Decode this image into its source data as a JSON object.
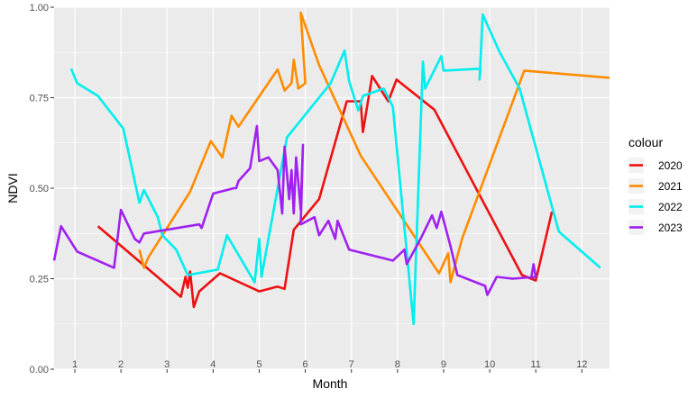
{
  "chart_data": {
    "type": "line",
    "title": "",
    "xlabel": "Month",
    "ylabel": "NDVI",
    "xlim": [
      0.55,
      12.6
    ],
    "ylim": [
      0,
      1
    ],
    "x_ticks": [
      1,
      2,
      3,
      4,
      5,
      6,
      7,
      8,
      9,
      10,
      11,
      12
    ],
    "x_tick_labels": [
      "1",
      "2",
      "3",
      "4",
      "5",
      "6",
      "7",
      "8",
      "9",
      "10",
      "11",
      "12"
    ],
    "y_ticks": [
      0,
      0.25,
      0.5,
      0.75,
      1
    ],
    "y_tick_labels": [
      "0.00",
      "0.25",
      "0.50",
      "0.75",
      "1.00"
    ],
    "grid": true,
    "legend_title": "colour",
    "legend_position": "right",
    "series": [
      {
        "name": "2020",
        "color": "#ee1111",
        "points": [
          [
            1.5,
            0.395
          ],
          [
            3.3,
            0.2
          ],
          [
            3.4,
            0.255
          ],
          [
            3.45,
            0.225
          ],
          [
            3.5,
            0.27
          ],
          [
            3.58,
            0.172
          ],
          [
            3.7,
            0.215
          ],
          [
            4.15,
            0.265
          ],
          [
            5.0,
            0.215
          ],
          [
            5.4,
            0.228
          ],
          [
            5.55,
            0.222
          ],
          [
            5.75,
            0.385
          ],
          [
            6.3,
            0.47
          ],
          [
            6.9,
            0.74
          ],
          [
            7.2,
            0.74
          ],
          [
            7.25,
            0.655
          ],
          [
            7.45,
            0.81
          ],
          [
            7.8,
            0.74
          ],
          [
            7.98,
            0.8
          ],
          [
            8.8,
            0.717
          ],
          [
            10.7,
            0.26
          ],
          [
            11.0,
            0.245
          ],
          [
            11.35,
            0.435
          ]
        ]
      },
      {
        "name": "2021",
        "color": "#ff8c00",
        "points": [
          [
            2.4,
            0.33
          ],
          [
            2.5,
            0.28
          ],
          [
            2.6,
            0.31
          ],
          [
            3.5,
            0.49
          ],
          [
            3.95,
            0.63
          ],
          [
            4.2,
            0.585
          ],
          [
            4.4,
            0.7
          ],
          [
            4.55,
            0.67
          ],
          [
            5.4,
            0.828
          ],
          [
            5.55,
            0.77
          ],
          [
            5.7,
            0.79
          ],
          [
            5.75,
            0.855
          ],
          [
            5.85,
            0.775
          ],
          [
            6.0,
            0.79
          ],
          [
            5.9,
            0.985
          ],
          [
            6.3,
            0.84
          ],
          [
            7.2,
            0.59
          ],
          [
            8.9,
            0.265
          ],
          [
            9.1,
            0.32
          ],
          [
            9.15,
            0.24
          ],
          [
            9.4,
            0.36
          ],
          [
            10.75,
            0.825
          ],
          [
            12.6,
            0.805
          ]
        ]
      },
      {
        "name": "2022",
        "color": "#00eeee",
        "points": [
          [
            0.92,
            0.83
          ],
          [
            1.05,
            0.79
          ],
          [
            1.5,
            0.755
          ],
          [
            2.05,
            0.665
          ],
          [
            2.4,
            0.46
          ],
          [
            2.5,
            0.495
          ],
          [
            2.8,
            0.42
          ],
          [
            2.9,
            0.37
          ],
          [
            3.2,
            0.33
          ],
          [
            3.45,
            0.26
          ],
          [
            4.1,
            0.275
          ],
          [
            4.3,
            0.37
          ],
          [
            4.9,
            0.24
          ],
          [
            5.0,
            0.36
          ],
          [
            5.05,
            0.255
          ],
          [
            5.6,
            0.64
          ],
          [
            6.55,
            0.79
          ],
          [
            6.85,
            0.88
          ],
          [
            6.95,
            0.795
          ],
          [
            7.15,
            0.715
          ],
          [
            7.25,
            0.755
          ],
          [
            7.7,
            0.775
          ],
          [
            7.9,
            0.725
          ],
          [
            8.35,
            0.125
          ],
          [
            8.55,
            0.85
          ],
          [
            8.6,
            0.775
          ],
          [
            8.95,
            0.865
          ],
          [
            9.0,
            0.825
          ],
          [
            9.8,
            0.83
          ],
          [
            9.78,
            0.8
          ],
          [
            9.85,
            0.98
          ],
          [
            10.2,
            0.88
          ],
          [
            10.65,
            0.775
          ],
          [
            11.5,
            0.38
          ],
          [
            12.4,
            0.28
          ]
        ]
      },
      {
        "name": "2023",
        "color": "#a020f0",
        "points": [
          [
            0.55,
            0.3
          ],
          [
            0.7,
            0.395
          ],
          [
            1.05,
            0.325
          ],
          [
            1.85,
            0.28
          ],
          [
            2.0,
            0.44
          ],
          [
            2.3,
            0.36
          ],
          [
            2.4,
            0.35
          ],
          [
            2.5,
            0.375
          ],
          [
            3.7,
            0.4
          ],
          [
            3.75,
            0.39
          ],
          [
            4.0,
            0.485
          ],
          [
            4.45,
            0.5
          ],
          [
            4.5,
            0.5
          ],
          [
            4.55,
            0.52
          ],
          [
            4.8,
            0.555
          ],
          [
            4.95,
            0.672
          ],
          [
            5.0,
            0.575
          ],
          [
            5.2,
            0.585
          ],
          [
            5.4,
            0.55
          ],
          [
            5.5,
            0.43
          ],
          [
            5.55,
            0.615
          ],
          [
            5.65,
            0.47
          ],
          [
            5.7,
            0.55
          ],
          [
            5.75,
            0.43
          ],
          [
            5.8,
            0.585
          ],
          [
            5.9,
            0.44
          ],
          [
            5.95,
            0.62
          ],
          [
            5.9,
            0.4
          ],
          [
            6.2,
            0.42
          ],
          [
            6.3,
            0.37
          ],
          [
            6.5,
            0.41
          ],
          [
            6.65,
            0.36
          ],
          [
            6.7,
            0.41
          ],
          [
            6.95,
            0.33
          ],
          [
            7.9,
            0.3
          ],
          [
            8.15,
            0.33
          ],
          [
            8.2,
            0.29
          ],
          [
            8.5,
            0.36
          ],
          [
            8.75,
            0.425
          ],
          [
            8.85,
            0.39
          ],
          [
            8.95,
            0.435
          ],
          [
            9.15,
            0.34
          ],
          [
            9.3,
            0.26
          ],
          [
            9.9,
            0.23
          ],
          [
            9.95,
            0.205
          ],
          [
            10.15,
            0.255
          ],
          [
            10.5,
            0.25
          ],
          [
            11.0,
            0.255
          ],
          [
            10.95,
            0.29
          ],
          [
            10.9,
            0.25
          ]
        ]
      }
    ]
  }
}
